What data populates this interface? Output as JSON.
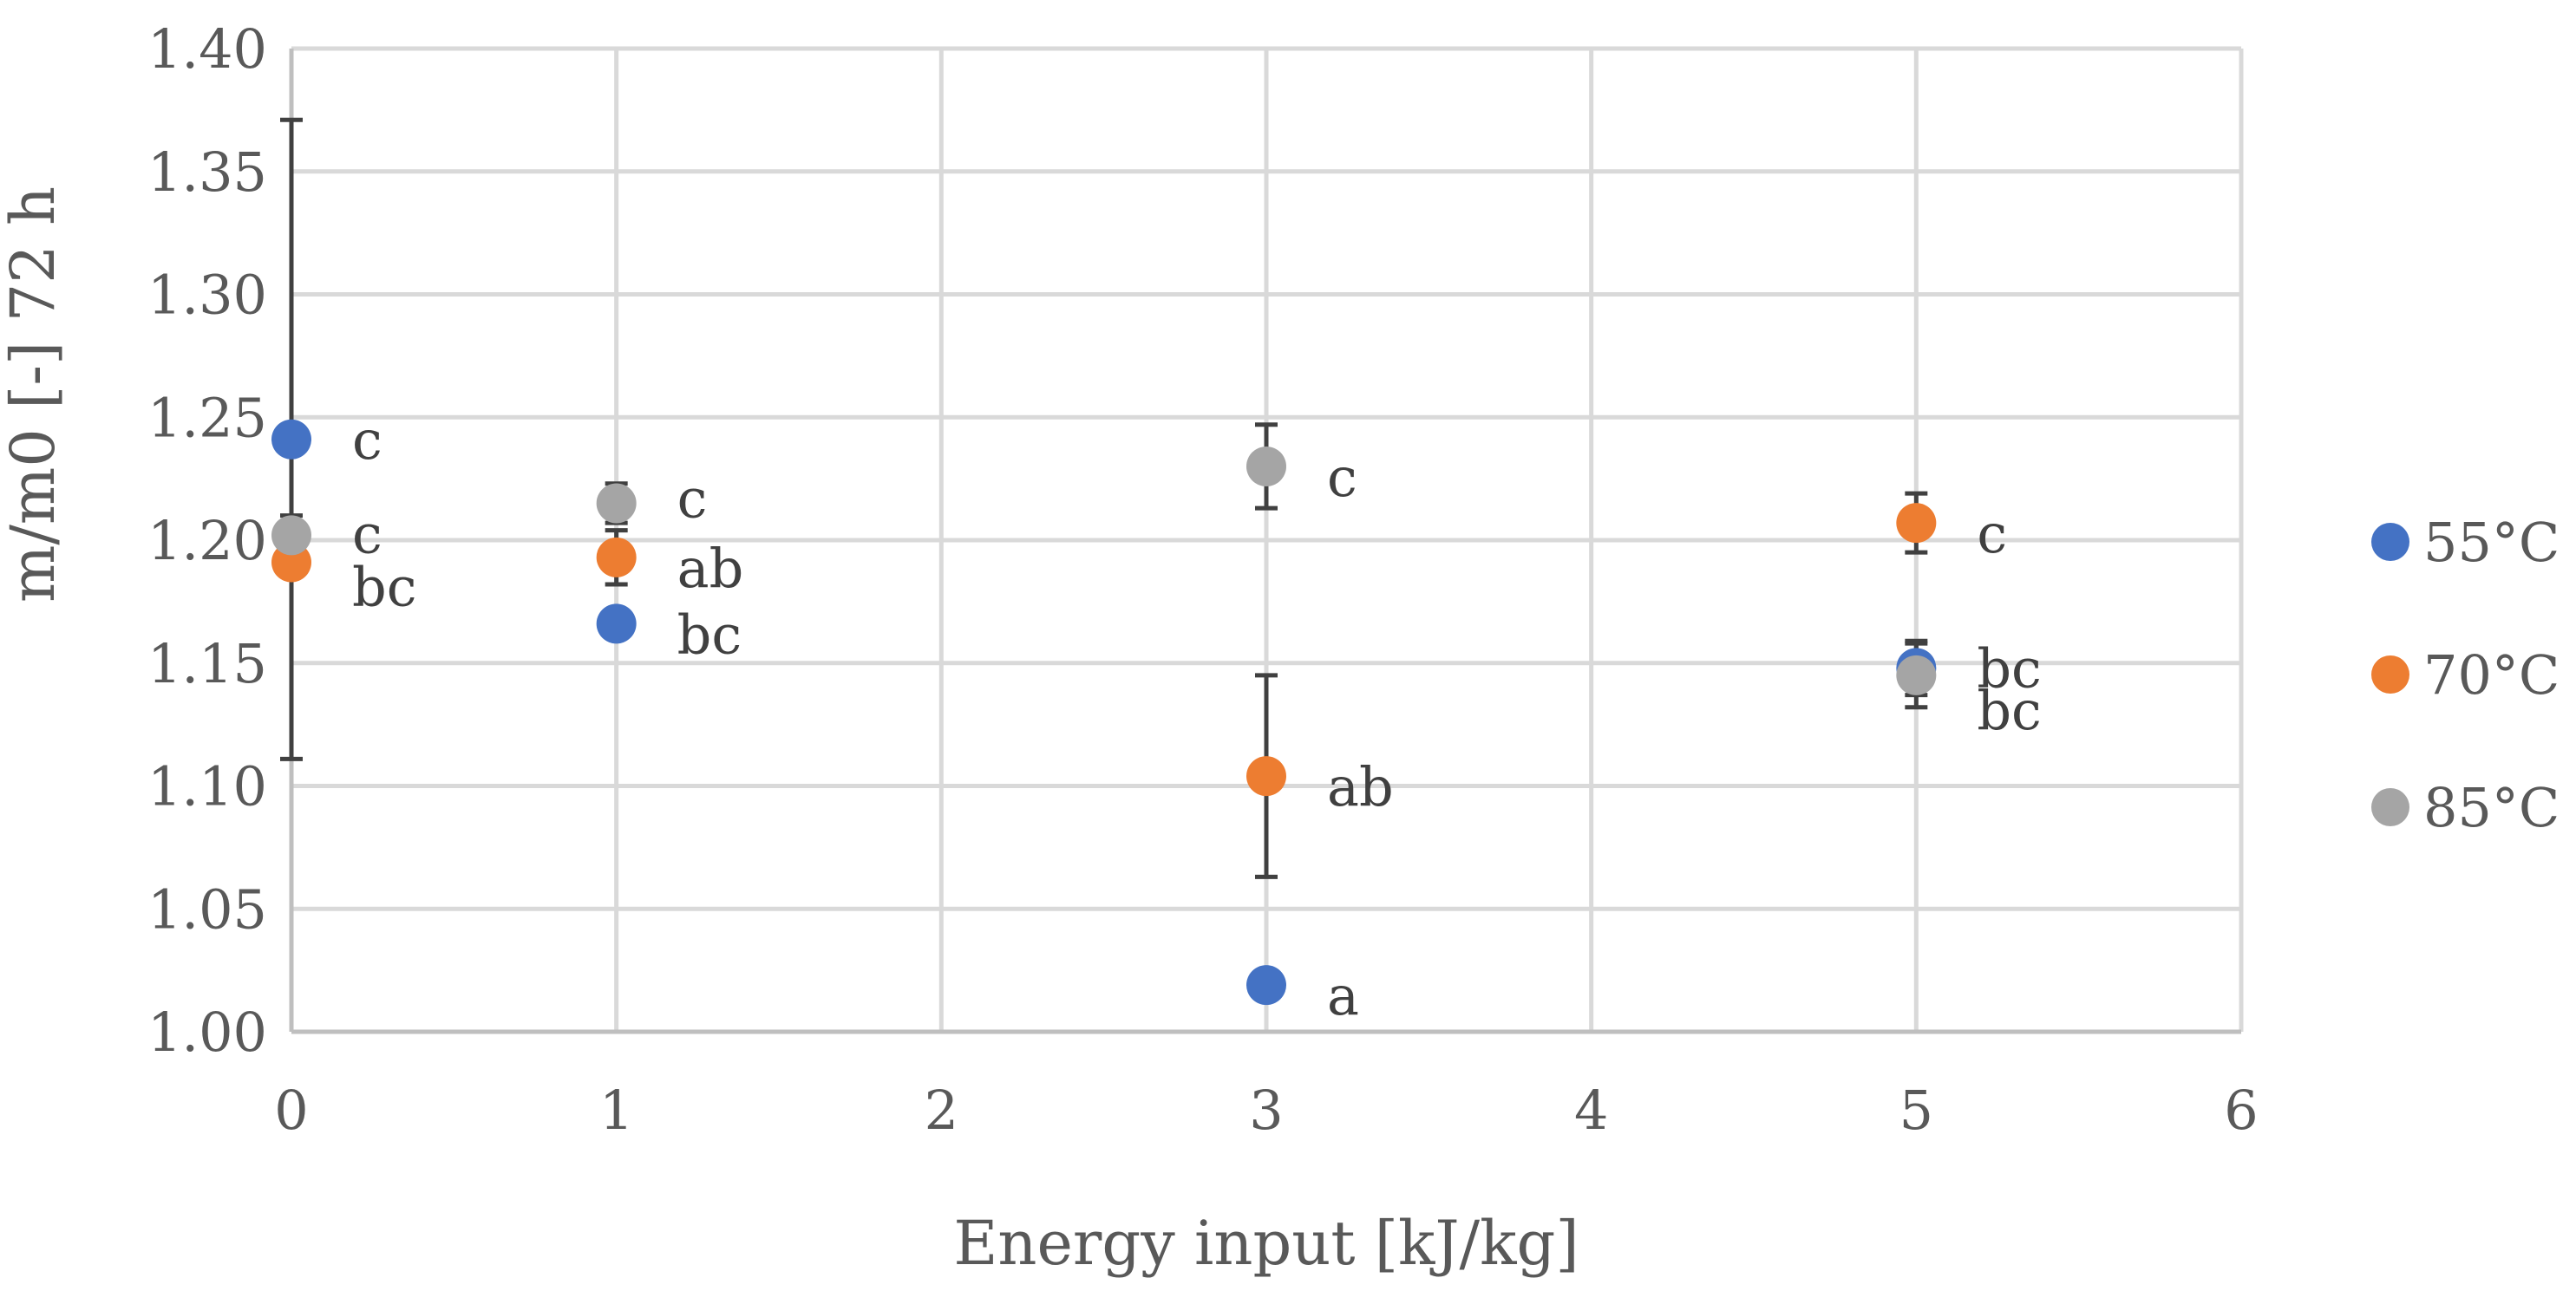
{
  "chart_data": {
    "type": "scatter",
    "title": "",
    "xlabel": "Energy input [kJ/kg]",
    "ylabel": "m/m0 [-] 72 h",
    "xlim": [
      0,
      6
    ],
    "ylim": [
      1.0,
      1.4
    ],
    "x_ticks": [
      "0",
      "1",
      "2",
      "3",
      "4",
      "5",
      "6"
    ],
    "y_ticks": [
      "1.00",
      "1.05",
      "1.10",
      "1.15",
      "1.20",
      "1.25",
      "1.30",
      "1.35",
      "1.40"
    ],
    "grid": true,
    "legend_position": "right",
    "series": [
      {
        "name": "55°C",
        "color": "#4472C4",
        "points": [
          {
            "x": 0,
            "y": 1.241,
            "err": 0.13,
            "label": "c"
          },
          {
            "x": 1,
            "y": 1.166,
            "err": 0.0,
            "label": "bc"
          },
          {
            "x": 3,
            "y": 1.019,
            "err": 0.0,
            "label": "a"
          },
          {
            "x": 5,
            "y": 1.148,
            "err": 0.011,
            "label": "bc"
          }
        ]
      },
      {
        "name": "70°C",
        "color": "#ED7D31",
        "points": [
          {
            "x": 0,
            "y": 1.191,
            "err": 0.0,
            "label": "bc"
          },
          {
            "x": 1,
            "y": 1.193,
            "err": 0.011,
            "label": "ab"
          },
          {
            "x": 3,
            "y": 1.104,
            "err": 0.041,
            "label": "ab"
          },
          {
            "x": 5,
            "y": 1.207,
            "err": 0.012,
            "label": "c"
          }
        ]
      },
      {
        "name": "85°C",
        "color": "#A5A5A5",
        "points": [
          {
            "x": 0,
            "y": 1.202,
            "err": 0.008,
            "label": "c"
          },
          {
            "x": 1,
            "y": 1.215,
            "err": 0.008,
            "label": "c"
          },
          {
            "x": 3,
            "y": 1.23,
            "err": 0.017,
            "label": "c"
          },
          {
            "x": 5,
            "y": 1.145,
            "err": 0.013,
            "label": "bc"
          }
        ]
      }
    ]
  }
}
